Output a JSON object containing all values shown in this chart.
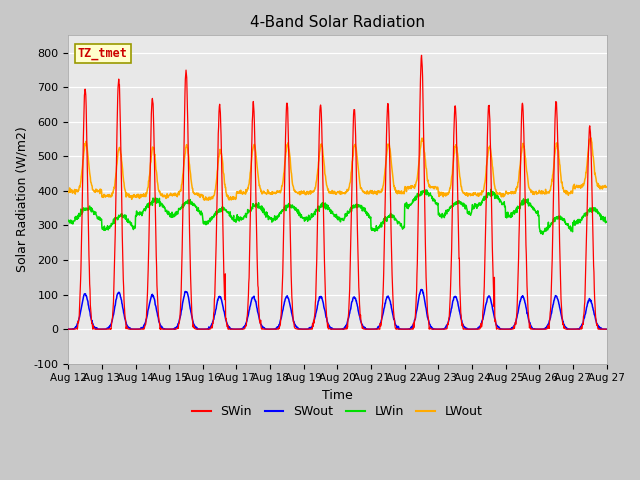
{
  "title": "4-Band Solar Radiation",
  "xlabel": "Time",
  "ylabel": "Solar Radiation (W/m2)",
  "annotation": "TZ_tmet",
  "ylim": [
    -100,
    850
  ],
  "yticks": [
    -100,
    0,
    100,
    200,
    300,
    400,
    500,
    600,
    700,
    800
  ],
  "xtick_labels": [
    "Aug 12",
    "Aug 13",
    "Aug 14",
    "Aug 15",
    "Aug 16",
    "Aug 17",
    "Aug 18",
    "Aug 19",
    "Aug 20",
    "Aug 21",
    "Aug 22",
    "Aug 23",
    "Aug 24",
    "Aug 25",
    "Aug 26",
    "Aug 27",
    "Aug 27"
  ],
  "legend": [
    "SWin",
    "SWout",
    "LWin",
    "LWout"
  ],
  "colors": {
    "SWin": "#ff0000",
    "SWout": "#0000ff",
    "LWin": "#00dd00",
    "LWout": "#ffaa00"
  },
  "fig_bg": "#c8c8c8",
  "plot_bg": "#e8e8e8",
  "annotation_bg": "#ffffcc",
  "annotation_fg": "#cc0000",
  "annotation_edge": "#999900",
  "n_days": 16,
  "dt_hours": 0.25,
  "sw_peaks": [
    700,
    730,
    670,
    750,
    650,
    650,
    655,
    650,
    640,
    650,
    790,
    650,
    650,
    655,
    660,
    590
  ],
  "lw_out_base": [
    400,
    385,
    385,
    390,
    378,
    395,
    395,
    395,
    395,
    395,
    410,
    390,
    390,
    395,
    395,
    412
  ],
  "lw_in_base": [
    330,
    308,
    352,
    348,
    328,
    338,
    338,
    338,
    338,
    308,
    378,
    348,
    373,
    348,
    303,
    328
  ]
}
